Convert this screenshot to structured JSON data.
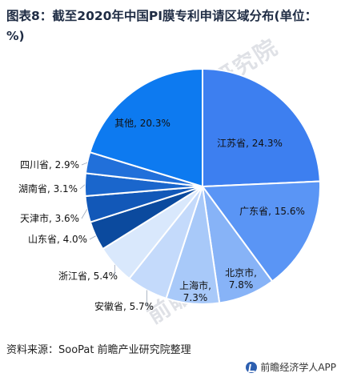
{
  "title": "图表8：截至2020年中国PI膜专利申请区域分布(单位：%)",
  "watermark": "前瞻产业研究院",
  "source": "资料来源：SooPat 前瞻产业研究院整理",
  "brand": "前瞻经济学人APP",
  "chart_data": {
    "type": "pie",
    "slices": [
      {
        "name": "江苏省",
        "value": 24.3,
        "label": "江苏省, 24.3%",
        "color": "#3d7ff0"
      },
      {
        "name": "广东省",
        "value": 15.6,
        "label": "广东省, 15.6%",
        "color": "#5a95f5"
      },
      {
        "name": "北京市",
        "value": 7.8,
        "label": "北京市, 7.8%",
        "color": "#87b3f7"
      },
      {
        "name": "上海市",
        "value": 7.3,
        "label": "上海市, 7.3%",
        "color": "#a8c9f9"
      },
      {
        "name": "安徽省",
        "value": 5.7,
        "label": "安徽省, 5.7%",
        "color": "#c4dafb"
      },
      {
        "name": "浙江省",
        "value": 5.4,
        "label": "浙江省, 5.4%",
        "color": "#d9e8fc"
      },
      {
        "name": "山东省",
        "value": 4.0,
        "label": "山东省, 4.0%",
        "color": "#0b4a9e"
      },
      {
        "name": "天津市",
        "value": 3.6,
        "label": "天津市, 3.6%",
        "color": "#1258b8"
      },
      {
        "name": "湖南省",
        "value": 3.1,
        "label": "湖南省, 3.1%",
        "color": "#1a66cc"
      },
      {
        "name": "四川省",
        "value": 2.9,
        "label": "四川省, 2.9%",
        "color": "#2170da"
      },
      {
        "name": "其他",
        "value": 20.3,
        "label": "其他, 20.3%",
        "color": "#0d7af0"
      }
    ]
  }
}
